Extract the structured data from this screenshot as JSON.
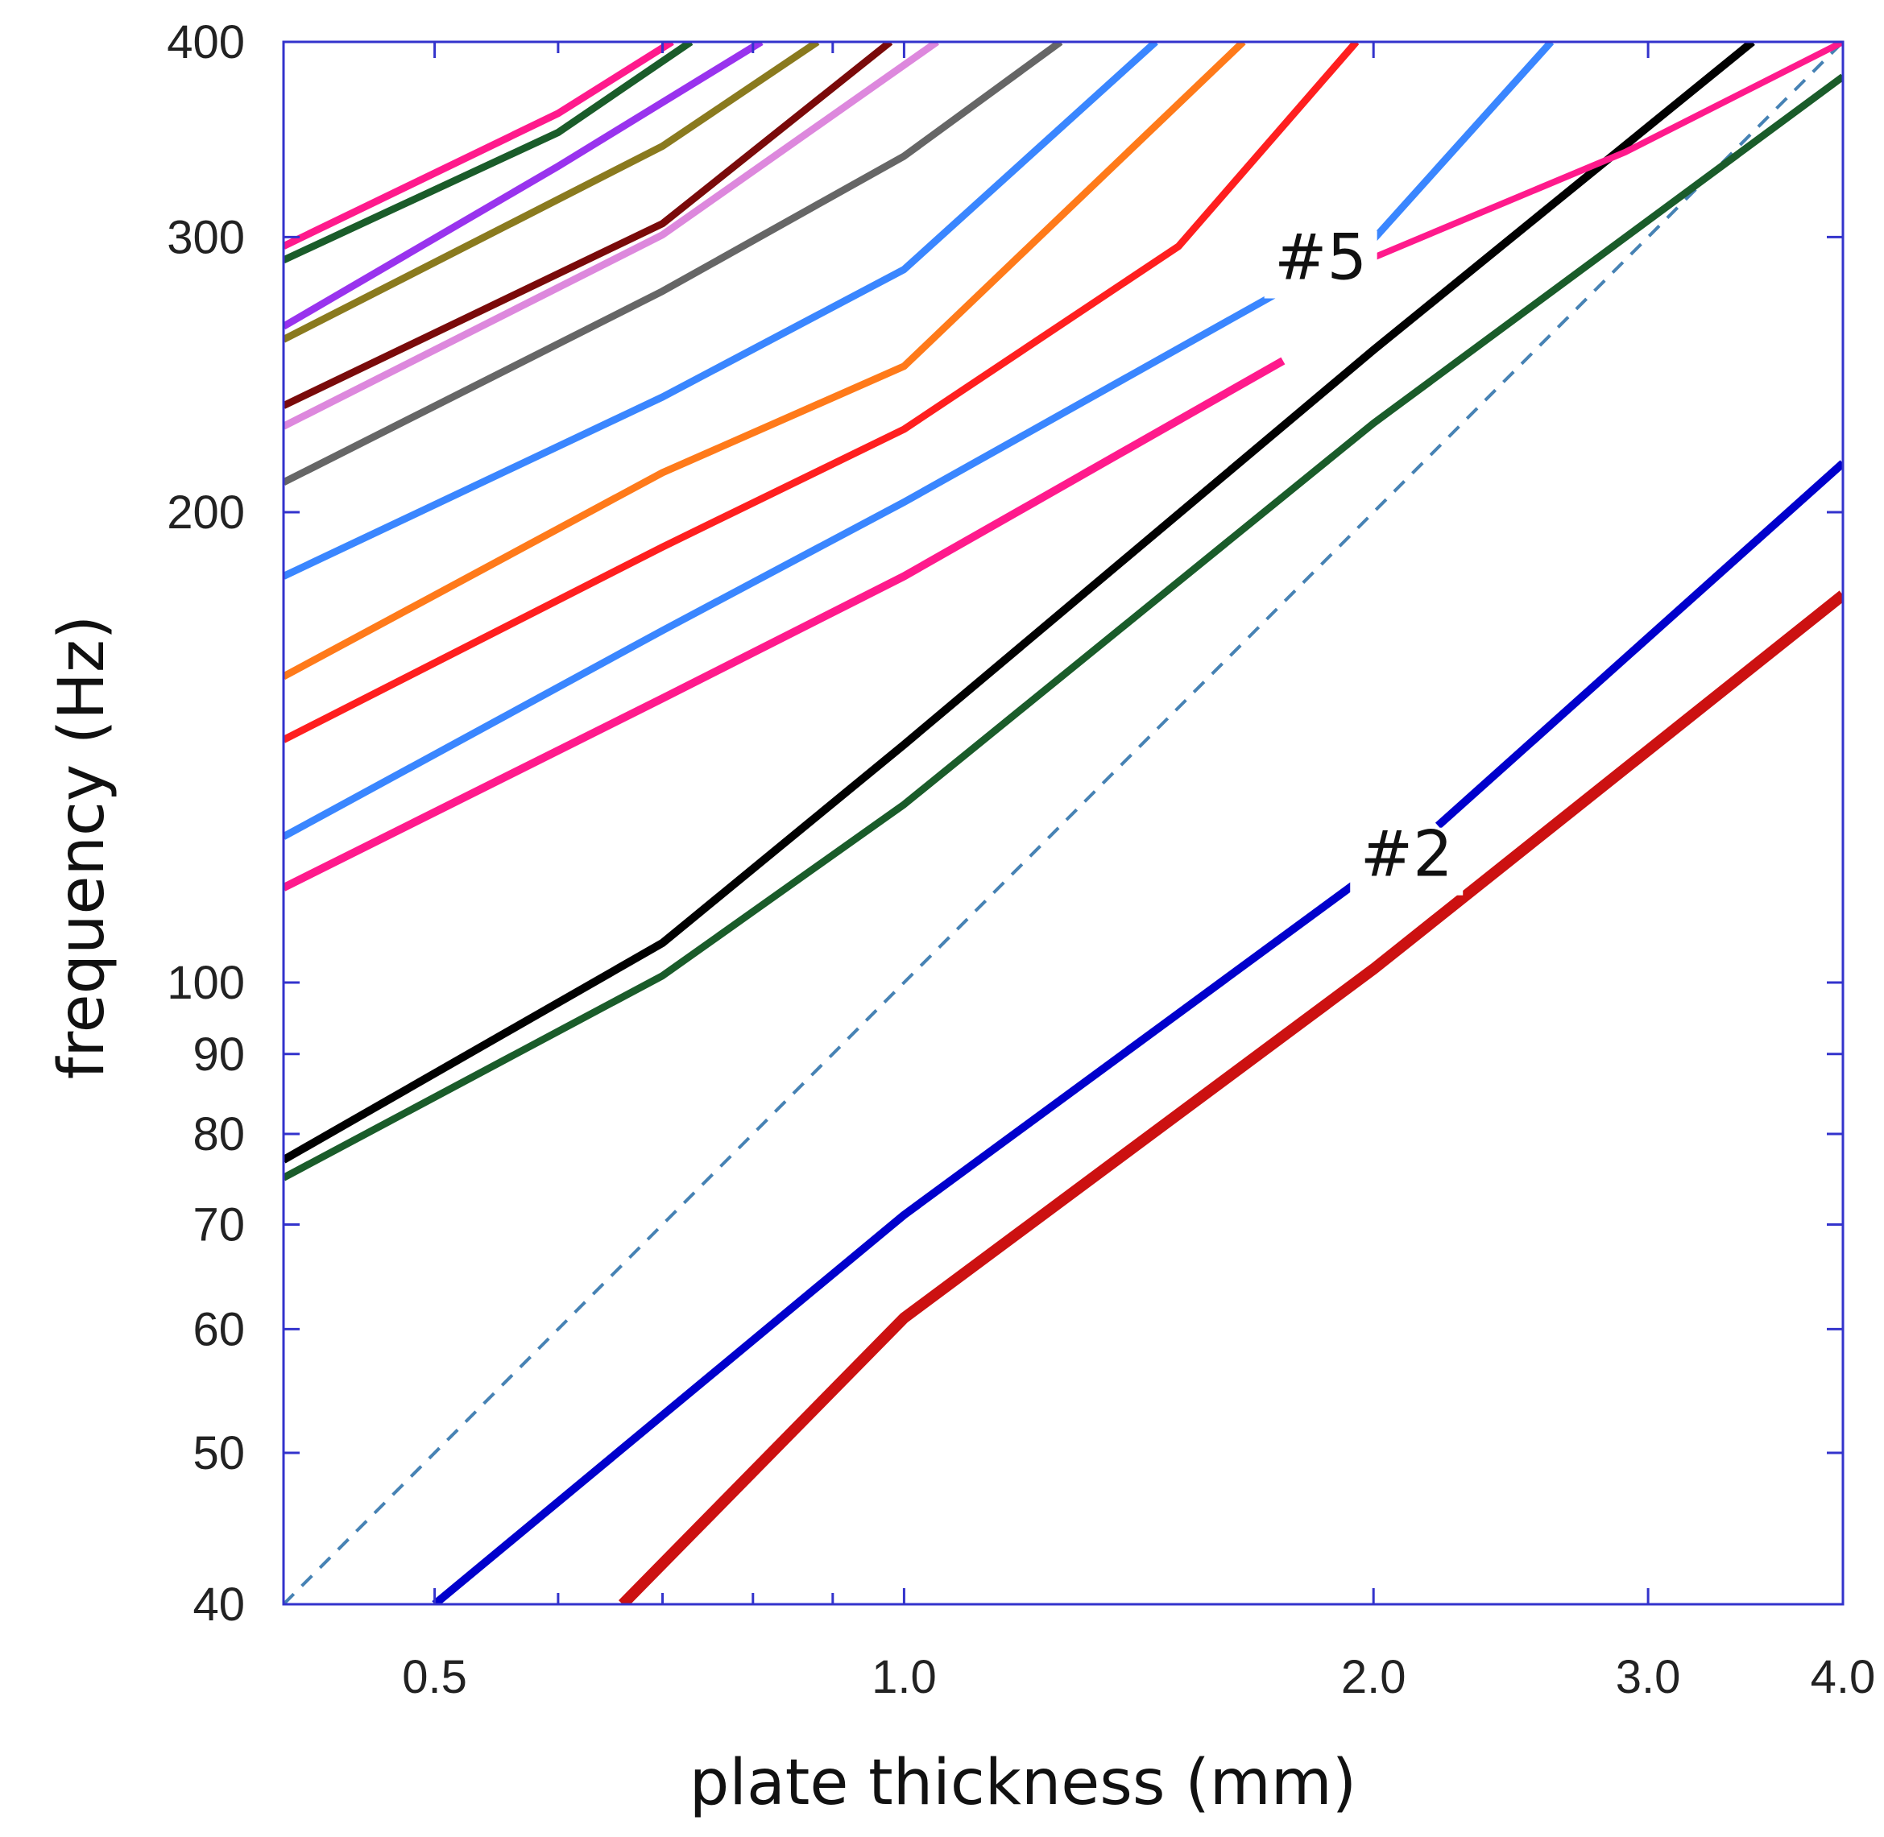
{
  "chart_data": {
    "type": "line",
    "title": "",
    "xlabel": "plate thickness (mm)",
    "ylabel": "frequency (Hz)",
    "xscale": "log",
    "yscale": "log",
    "xlim": [
      0.4,
      4.0
    ],
    "ylim": [
      40,
      400
    ],
    "grid": false,
    "legend": "none",
    "x_ticks": [
      {
        "value": 0.5,
        "label": "0.5"
      },
      {
        "value": 1.0,
        "label": "1.0"
      },
      {
        "value": 2.0,
        "label": "2.0"
      },
      {
        "value": 3.0,
        "label": "3.0"
      },
      {
        "value": 4.0,
        "label": "4.0"
      }
    ],
    "x_minor_ticks": [
      0.6,
      0.7,
      0.8,
      0.9
    ],
    "y_ticks": [
      {
        "value": 40,
        "label": "40"
      },
      {
        "value": 50,
        "label": "50"
      },
      {
        "value": 60,
        "label": "60"
      },
      {
        "value": 70,
        "label": "70"
      },
      {
        "value": 80,
        "label": "80"
      },
      {
        "value": 90,
        "label": "90"
      },
      {
        "value": 100,
        "label": "100"
      },
      {
        "value": 200,
        "label": "200"
      },
      {
        "value": 300,
        "label": "300"
      },
      {
        "value": 400,
        "label": "400"
      }
    ],
    "annotations": [
      {
        "text": "#5",
        "x": 1.85,
        "y": 282
      },
      {
        "text": "#2",
        "x": 2.1,
        "y": 117
      }
    ],
    "frame_color": "#3333cc",
    "series": [
      {
        "color": "#cc1111",
        "width": 14,
        "points": [
          [
            0.66,
            40
          ],
          [
            1.0,
            61
          ],
          [
            2.0,
            102
          ],
          [
            4.0,
            177
          ]
        ]
      },
      {
        "color": "#0000cc",
        "width": 10,
        "points": [
          [
            0.5,
            40
          ],
          [
            1.0,
            71
          ],
          [
            2.0,
            118
          ]
        ],
        "break_after": 2
      },
      {
        "color": "#0000cc",
        "width": 10,
        "points": [
          [
            2.2,
            126
          ],
          [
            4.0,
            215
          ]
        ]
      },
      {
        "color": "#4682b4",
        "width": 4,
        "dash": "18,14",
        "points": [
          [
            0.4,
            40
          ],
          [
            4.0,
            400
          ]
        ]
      },
      {
        "color": "#1a5c2a",
        "width": 9,
        "points": [
          [
            0.4,
            75
          ],
          [
            0.7,
            101
          ],
          [
            1.0,
            130
          ],
          [
            2.0,
            228
          ],
          [
            4.0,
            380
          ]
        ]
      },
      {
        "color": "#000000",
        "width": 10,
        "points": [
          [
            0.4,
            77
          ],
          [
            0.7,
            106
          ],
          [
            1.0,
            142
          ],
          [
            2.0,
            254
          ],
          [
            3.5,
            400
          ]
        ]
      },
      {
        "color": "#ff1a8c",
        "width": 10,
        "points": [
          [
            0.4,
            115
          ],
          [
            0.7,
            152
          ],
          [
            1.0,
            182
          ],
          [
            1.75,
            250
          ]
        ]
      },
      {
        "color": "#ff1a8c",
        "width": 8,
        "points": [
          [
            1.95,
            288
          ],
          [
            2.9,
            340
          ],
          [
            4.0,
            400
          ]
        ]
      },
      {
        "color": "#3a86ff",
        "width": 9,
        "points": [
          [
            0.4,
            124
          ],
          [
            0.7,
            168
          ],
          [
            1.0,
            203
          ],
          [
            2.0,
            299
          ],
          [
            2.6,
            400
          ]
        ]
      },
      {
        "color": "#ff1f1f",
        "width": 9,
        "points": [
          [
            0.4,
            143
          ],
          [
            0.7,
            190
          ],
          [
            1.0,
            226
          ],
          [
            1.5,
            296
          ],
          [
            1.95,
            400
          ]
        ]
      },
      {
        "color": "#ff7a1a",
        "width": 9,
        "points": [
          [
            0.4,
            157
          ],
          [
            0.7,
            212
          ],
          [
            1.0,
            248
          ],
          [
            1.65,
            400
          ]
        ]
      },
      {
        "color": "#3a86ff",
        "width": 9,
        "points": [
          [
            0.4,
            182
          ],
          [
            0.7,
            237
          ],
          [
            1.0,
            286
          ],
          [
            1.45,
            400
          ]
        ]
      },
      {
        "color": "#666666",
        "width": 9,
        "points": [
          [
            0.4,
            209
          ],
          [
            0.7,
            277
          ],
          [
            1.0,
            338
          ],
          [
            1.26,
            400
          ]
        ]
      },
      {
        "color": "#dd88dd",
        "width": 9,
        "points": [
          [
            0.4,
            227
          ],
          [
            0.7,
            301
          ],
          [
            1.05,
            400
          ]
        ]
      },
      {
        "color": "#7a0a0a",
        "width": 9,
        "points": [
          [
            0.4,
            234
          ],
          [
            0.7,
            306
          ],
          [
            0.98,
            400
          ]
        ]
      },
      {
        "color": "#8a7a1e",
        "width": 9,
        "points": [
          [
            0.4,
            258
          ],
          [
            0.7,
            343
          ],
          [
            0.88,
            400
          ]
        ]
      },
      {
        "color": "#9933ee",
        "width": 9,
        "points": [
          [
            0.4,
            263
          ],
          [
            0.6,
            333
          ],
          [
            0.81,
            400
          ]
        ]
      },
      {
        "color": "#1a5c2a",
        "width": 9,
        "points": [
          [
            0.4,
            290
          ],
          [
            0.6,
            350
          ],
          [
            0.73,
            400
          ]
        ]
      },
      {
        "color": "#ff1a8c",
        "width": 9,
        "points": [
          [
            0.4,
            296
          ],
          [
            0.6,
            360
          ],
          [
            0.71,
            400
          ]
        ]
      }
    ]
  }
}
